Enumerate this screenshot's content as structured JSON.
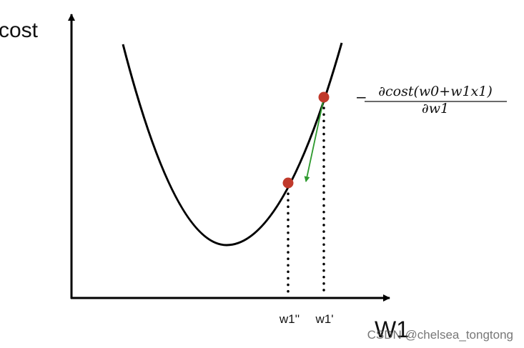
{
  "axes": {
    "y_label": "cost",
    "x_label": "W1"
  },
  "points": [
    {
      "label": "w1''"
    },
    {
      "label": "w1'"
    }
  ],
  "formula": {
    "sign": "−",
    "numerator": "∂cost(w0+w1x1)",
    "denominator": "∂w1"
  },
  "watermark": "CSDN @chelsea_tongtong"
}
